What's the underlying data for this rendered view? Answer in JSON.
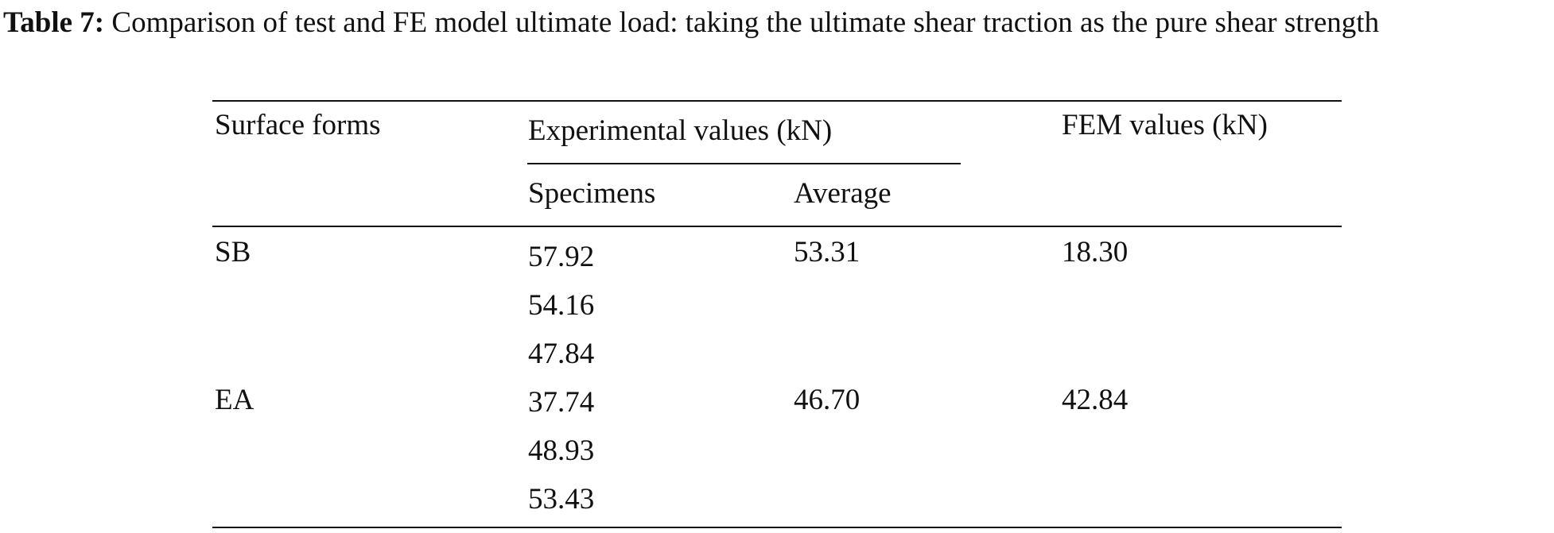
{
  "caption": {
    "label": "Table 7:",
    "text": "Comparison of test and FE model ultimate load: taking the ultimate shear traction as the pure shear strength"
  },
  "table": {
    "headers": {
      "surface_forms": "Surface forms",
      "experimental": "Experimental values (kN)",
      "specimens": "Specimens",
      "average": "Average",
      "fem": "FEM values (kN)"
    },
    "rows": [
      {
        "surface": "SB",
        "specimens": [
          "57.92",
          "54.16",
          "47.84"
        ],
        "average": "53.31",
        "fem": "18.30"
      },
      {
        "surface": "EA",
        "specimens": [
          "37.74",
          "48.93",
          "53.43"
        ],
        "average": "46.70",
        "fem": "42.84"
      }
    ]
  }
}
